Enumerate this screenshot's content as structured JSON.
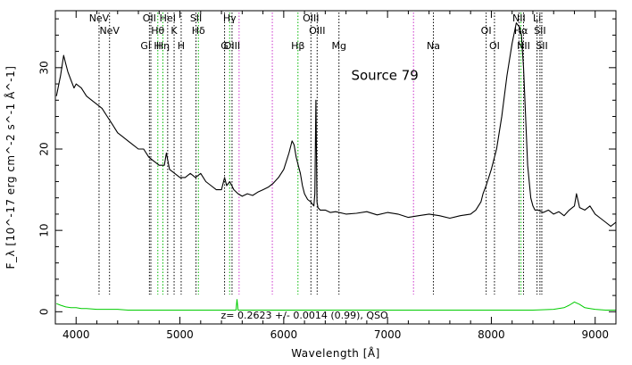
{
  "chart_data": {
    "type": "line",
    "title": "",
    "xlabel": "Wavelength [Å]",
    "ylabel": "F_λ [10^-17 erg cm^-2 s^-1 Å^-1]",
    "xlim": [
      3800,
      9200
    ],
    "ylim": [
      -1.5,
      37
    ],
    "xticks": [
      4000,
      5000,
      6000,
      7000,
      8000,
      9000
    ],
    "yticks": [
      0,
      10,
      20,
      30
    ],
    "grid": false,
    "annotation": "Source 79",
    "redshift_label": "z=  0.2623 +/-  0.0014 (0.99), QSO",
    "colors": {
      "flux": "#000000",
      "error": "#00cc00",
      "line_black": "#000000",
      "line_green": "#00bb00",
      "line_magenta": "#cc33cc"
    },
    "series": [
      {
        "role": "flux",
        "x": [
          3810,
          3850,
          3880,
          3900,
          3920,
          3950,
          3980,
          4000,
          4050,
          4100,
          4150,
          4200,
          4250,
          4300,
          4350,
          4400,
          4450,
          4500,
          4550,
          4600,
          4650,
          4700,
          4750,
          4800,
          4850,
          4870,
          4900,
          4950,
          5000,
          5050,
          5100,
          5150,
          5200,
          5250,
          5300,
          5350,
          5400,
          5430,
          5450,
          5480,
          5520,
          5560,
          5600,
          5650,
          5700,
          5750,
          5800,
          5850,
          5900,
          5950,
          6000,
          6050,
          6080,
          6100,
          6120,
          6140,
          6160,
          6180,
          6200,
          6230,
          6260,
          6290,
          6300,
          6310,
          6320,
          6330,
          6350,
          6400,
          6450,
          6500,
          6600,
          6700,
          6800,
          6900,
          7000,
          7100,
          7200,
          7300,
          7400,
          7500,
          7600,
          7700,
          7800,
          7850,
          7900,
          7920,
          7950,
          8000,
          8050,
          8100,
          8150,
          8200,
          8240,
          8270,
          8290,
          8300,
          8310,
          8330,
          8350,
          8380,
          8400,
          8420,
          8450,
          8500,
          8550,
          8600,
          8650,
          8700,
          8750,
          8800,
          8820,
          8850,
          8900,
          8950,
          9000,
          9050,
          9100,
          9150,
          9200
        ],
        "y": [
          26.5,
          29.0,
          31.5,
          30.5,
          29.5,
          28.5,
          27.5,
          28.0,
          27.5,
          26.5,
          26.0,
          25.5,
          25.0,
          24.0,
          23.0,
          22.0,
          21.5,
          21.0,
          20.5,
          20.0,
          20.0,
          19.0,
          18.5,
          18.0,
          18.0,
          19.5,
          17.5,
          17.0,
          16.5,
          16.5,
          17.0,
          16.5,
          17.0,
          16.0,
          15.5,
          15.0,
          15.0,
          16.5,
          15.5,
          16.0,
          15.0,
          14.5,
          14.2,
          14.5,
          14.3,
          14.7,
          15.0,
          15.3,
          15.8,
          16.5,
          17.5,
          19.5,
          21.0,
          20.5,
          19.0,
          18.0,
          17.0,
          15.5,
          14.5,
          13.8,
          13.5,
          13.0,
          14.5,
          26.0,
          13.5,
          12.8,
          12.5,
          12.5,
          12.2,
          12.3,
          12.0,
          12.1,
          12.3,
          11.9,
          12.2,
          12.0,
          11.6,
          11.8,
          12.0,
          11.8,
          11.5,
          11.8,
          12.0,
          12.5,
          13.5,
          14.5,
          15.5,
          17.5,
          20.0,
          24.0,
          29.0,
          33.0,
          35.5,
          35.0,
          34.0,
          32.0,
          30.0,
          24.0,
          18.0,
          14.0,
          13.0,
          12.5,
          12.5,
          12.2,
          12.5,
          12.0,
          12.3,
          11.8,
          12.5,
          13.0,
          14.5,
          12.8,
          12.5,
          13.0,
          12.0,
          11.5,
          11.0,
          10.5,
          11.0
        ]
      },
      {
        "role": "error",
        "x": [
          3810,
          3850,
          3900,
          3950,
          4000,
          4050,
          4100,
          4200,
          4300,
          4400,
          4500,
          4600,
          4700,
          4800,
          4900,
          5000,
          5200,
          5400,
          5540,
          5550,
          5560,
          5600,
          5800,
          6000,
          6200,
          6400,
          6600,
          6800,
          7000,
          7200,
          7400,
          7600,
          7800,
          8000,
          8200,
          8400,
          8600,
          8700,
          8750,
          8800,
          8850,
          8900,
          8950,
          9000,
          9100,
          9200
        ],
        "y": [
          1.0,
          0.8,
          0.6,
          0.5,
          0.5,
          0.4,
          0.4,
          0.3,
          0.3,
          0.3,
          0.2,
          0.2,
          0.2,
          0.2,
          0.2,
          0.2,
          0.2,
          0.2,
          0.2,
          1.5,
          0.2,
          0.2,
          0.2,
          0.2,
          0.2,
          0.2,
          0.2,
          0.2,
          0.2,
          0.2,
          0.2,
          0.2,
          0.2,
          0.2,
          0.2,
          0.2,
          0.3,
          0.5,
          0.8,
          1.2,
          0.9,
          0.5,
          0.4,
          0.3,
          0.2,
          0.2
        ]
      }
    ],
    "line_markers": [
      {
        "wavelength": 4221,
        "color": "black",
        "label": "NeV",
        "row": 1
      },
      {
        "wavelength": 4322,
        "color": "black",
        "label": "NeV",
        "row": 2
      },
      {
        "wavelength": 4706,
        "color": "black",
        "label": "OII",
        "row": 1
      },
      {
        "wavelength": 4720,
        "color": "black",
        "label": "Gl H",
        "row": 3
      },
      {
        "wavelength": 4787,
        "color": "green",
        "label": "Hθ",
        "row": 2
      },
      {
        "wavelength": 4836,
        "color": "green",
        "label": "Hη",
        "row": 3
      },
      {
        "wavelength": 4882,
        "color": "black",
        "label": "HeI",
        "row": 1
      },
      {
        "wavelength": 4944,
        "color": "black",
        "label": "K",
        "row": 2
      },
      {
        "wavelength": 5012,
        "color": "black",
        "label": "H",
        "row": 3
      },
      {
        "wavelength": 5155,
        "color": "black",
        "label": "SII",
        "row": 1
      },
      {
        "wavelength": 5178,
        "color": "green",
        "label": "Hδ",
        "row": 2
      },
      {
        "wavelength": 5430,
        "color": "black",
        "label": "G",
        "row": 3
      },
      {
        "wavelength": 5479,
        "color": "green",
        "label": "Hγ",
        "row": 1
      },
      {
        "wavelength": 5502,
        "color": "black",
        "label": "OIII",
        "row": 3
      },
      {
        "wavelength": 5570,
        "color": "magenta",
        "label": "",
        "row": 0
      },
      {
        "wavelength": 5890,
        "color": "magenta",
        "label": "",
        "row": 0
      },
      {
        "wavelength": 6137,
        "color": "green",
        "label": "Hβ",
        "row": 3
      },
      {
        "wavelength": 6262,
        "color": "black",
        "label": "OIII",
        "row": 1
      },
      {
        "wavelength": 6322,
        "color": "black",
        "label": "OIII",
        "row": 2
      },
      {
        "wavelength": 6532,
        "color": "black",
        "label": "Mg",
        "row": 3
      },
      {
        "wavelength": 7250,
        "color": "magenta",
        "label": "",
        "row": 0
      },
      {
        "wavelength": 7442,
        "color": "black",
        "label": "Na",
        "row": 3
      },
      {
        "wavelength": 7950,
        "color": "black",
        "label": "OI",
        "row": 2
      },
      {
        "wavelength": 8030,
        "color": "black",
        "label": "OI",
        "row": 3
      },
      {
        "wavelength": 8266,
        "color": "black",
        "label": "NII",
        "row": 1
      },
      {
        "wavelength": 8285,
        "color": "green",
        "label": "Hα",
        "row": 2
      },
      {
        "wavelength": 8310,
        "color": "black",
        "label": "NII",
        "row": 3
      },
      {
        "wavelength": 8440,
        "color": "black",
        "label": "Li",
        "row": 1
      },
      {
        "wavelength": 8468,
        "color": "black",
        "label": "SII",
        "row": 2
      },
      {
        "wavelength": 8486,
        "color": "black",
        "label": "SII",
        "row": 3
      }
    ]
  }
}
